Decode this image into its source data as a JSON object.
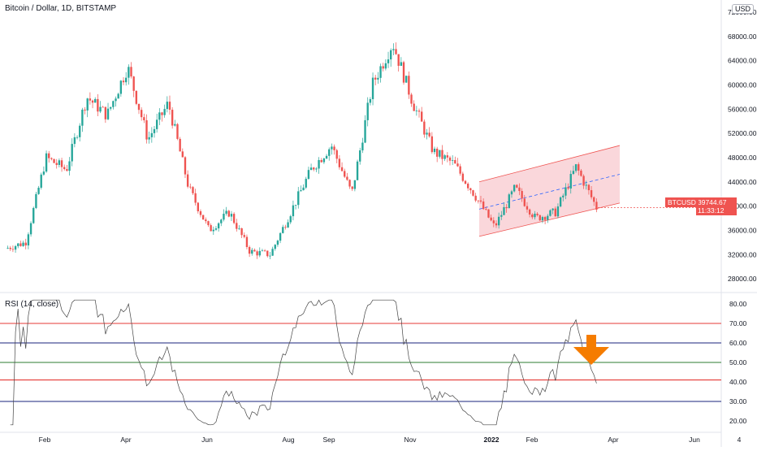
{
  "header": {
    "symbol_title": "Bitcoin / Dollar, 1D, BITSTAMP",
    "currency": "USD",
    "price_tag_symbol": "BTCUSD",
    "price_tag_value": "39744.67",
    "price_tag_time": "11:33:12"
  },
  "rsi": {
    "title": "RSI (14, close)"
  },
  "colors": {
    "up": "#26a69a",
    "down": "#ef5350",
    "channel_fill": "#f8c6cc",
    "channel_line": "#ef5350",
    "midline": "#2962ff",
    "rsi_red": "#e53935",
    "rsi_blue": "#1a237e",
    "rsi_green": "#2e7d32",
    "arrow": "#f57c00"
  },
  "chart_data": [
    {
      "type": "candlestick",
      "title": "Bitcoin / Dollar, 1D, BITSTAMP",
      "ylabel": "USD",
      "ylim": [
        26000,
        72000
      ],
      "y_ticks": [
        "28000.00",
        "32000.00",
        "36000.00",
        "40000.00",
        "44000.00",
        "48000.00",
        "52000.00",
        "56000.00",
        "60000.00",
        "64000.00",
        "68000.00",
        "72000.00"
      ],
      "x_tick_labels": [
        "Feb",
        "Apr",
        "Jun",
        "Aug",
        "Sep",
        "Nov",
        "2022",
        "Feb",
        "Apr",
        "Jun",
        "4"
      ],
      "close_path": [
        {
          "month": "Jan 2021",
          "price": 33000
        },
        {
          "month": "Early Feb",
          "price": 34000
        },
        {
          "month": "Mid Feb",
          "price": 48000
        },
        {
          "month": "Late Feb",
          "price": 46000
        },
        {
          "month": "Mid Mar",
          "price": 58000
        },
        {
          "month": "Late Mar",
          "price": 55000
        },
        {
          "month": "Mid Apr",
          "price": 63000
        },
        {
          "month": "Late Apr",
          "price": 51000
        },
        {
          "month": "Early May",
          "price": 57000
        },
        {
          "month": "Mid May",
          "price": 43000
        },
        {
          "month": "Late May",
          "price": 36000
        },
        {
          "month": "Mid Jun",
          "price": 39000
        },
        {
          "month": "Late Jun",
          "price": 32500
        },
        {
          "month": "Mid Jul",
          "price": 32000
        },
        {
          "month": "Late Jul",
          "price": 39000
        },
        {
          "month": "Mid Aug",
          "price": 46000
        },
        {
          "month": "Early Sep",
          "price": 50000
        },
        {
          "month": "Late Sep",
          "price": 42000
        },
        {
          "month": "Mid Oct",
          "price": 60000
        },
        {
          "month": "Early Nov",
          "price": 67000
        },
        {
          "month": "Late Nov",
          "price": 57000
        },
        {
          "month": "Early Dec",
          "price": 49000
        },
        {
          "month": "Late Dec",
          "price": 47000
        },
        {
          "month": "Mid Jan 2022",
          "price": 42000
        },
        {
          "month": "Late Jan",
          "price": 36500
        },
        {
          "month": "Mid Feb",
          "price": 43000
        },
        {
          "month": "Late Feb",
          "price": 38000
        },
        {
          "month": "Mid Mar",
          "price": 39000
        },
        {
          "month": "Early Apr",
          "price": 46500
        },
        {
          "month": "Mid Apr",
          "price": 39744.67
        }
      ],
      "last_price": 39744.67,
      "annotations": {
        "channel": {
          "start": "Late Jan 2022",
          "end": "Mid Apr 2022",
          "upper_start": 44000,
          "upper_end": 50000,
          "lower_start": 35000,
          "lower_end": 40500
        },
        "channel_midline": true
      }
    },
    {
      "type": "line",
      "title": "RSI (14, close)",
      "ylim": [
        15,
        85
      ],
      "y_ticks": [
        "20.00",
        "30.00",
        "40.00",
        "50.00",
        "60.00",
        "70.00",
        "80.00"
      ],
      "reference_lines": [
        {
          "value": 70,
          "color": "red"
        },
        {
          "value": 60,
          "color": "blue"
        },
        {
          "value": 50,
          "color": "green"
        },
        {
          "value": 41,
          "color": "red"
        },
        {
          "value": 30,
          "color": "blue"
        }
      ],
      "annotations": {
        "arrow": "down",
        "arrow_color": "orange",
        "at": "Early Apr 2022",
        "level": 55
      }
    }
  ]
}
